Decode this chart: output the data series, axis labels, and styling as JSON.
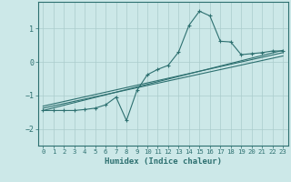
{
  "xlabel": "Humidex (Indice chaleur)",
  "bg_color": "#cce8e8",
  "grid_color": "#aacccc",
  "line_color": "#2d7070",
  "xlim": [
    -0.5,
    23.5
  ],
  "ylim": [
    -2.5,
    1.8
  ],
  "xticks": [
    0,
    1,
    2,
    3,
    4,
    5,
    6,
    7,
    8,
    9,
    10,
    11,
    12,
    13,
    14,
    15,
    16,
    17,
    18,
    19,
    20,
    21,
    22,
    23
  ],
  "yticks": [
    -2,
    -1,
    0,
    1
  ],
  "line1_x": [
    0,
    1,
    2,
    3,
    4,
    5,
    6,
    7,
    8,
    9,
    10,
    11,
    12,
    13,
    14,
    15,
    16,
    17,
    18,
    19,
    20,
    21,
    22,
    23
  ],
  "line1_y": [
    -1.45,
    -1.45,
    -1.45,
    -1.45,
    -1.42,
    -1.38,
    -1.28,
    -1.05,
    -1.75,
    -0.85,
    -0.38,
    -0.22,
    -0.1,
    0.3,
    1.1,
    1.52,
    1.38,
    0.62,
    0.6,
    0.22,
    0.25,
    0.28,
    0.33,
    0.33
  ],
  "line2_x": [
    0,
    23
  ],
  "line2_y": [
    -1.45,
    0.35
  ],
  "line3_x": [
    0,
    23
  ],
  "line3_y": [
    -1.32,
    0.28
  ],
  "line4_x": [
    0,
    23
  ],
  "line4_y": [
    -1.38,
    0.18
  ]
}
